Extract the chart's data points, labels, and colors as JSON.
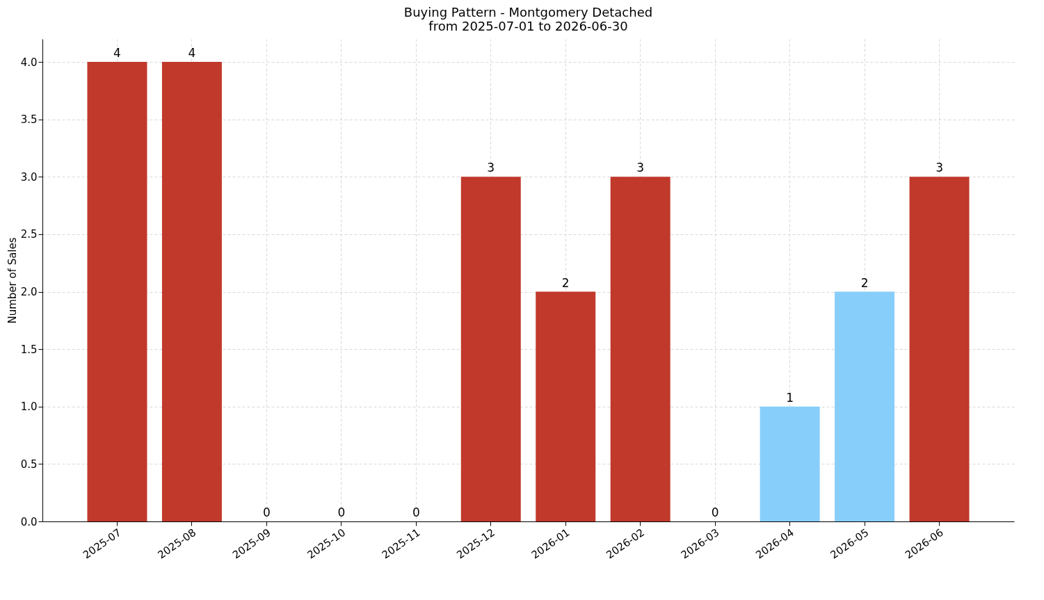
{
  "chart_data": {
    "type": "bar",
    "title": "Buying Pattern - Montgomery Detached\nfrom 2025-07-01 to 2026-06-30",
    "ylabel": "Number of Sales",
    "categories": [
      "2025-07",
      "2025-08",
      "2025-09",
      "2025-10",
      "2025-11",
      "2025-12",
      "2026-01",
      "2026-02",
      "2026-03",
      "2026-04",
      "2026-05",
      "2026-06"
    ],
    "values": [
      4,
      4,
      0,
      0,
      0,
      3,
      2,
      3,
      0,
      1,
      2,
      3
    ],
    "colors": [
      "#c0392b",
      "#c0392b",
      "#c0392b",
      "#c0392b",
      "#c0392b",
      "#c0392b",
      "#c0392b",
      "#c0392b",
      "#c0392b",
      "#87cefa",
      "#87cefa",
      "#c0392b"
    ],
    "ylim": [
      0,
      4.2
    ],
    "yticks": [
      {
        "value": 0,
        "label": "0.0"
      },
      0.5,
      {
        "value": 1,
        "label": "1.0"
      },
      1.5,
      {
        "value": 2,
        "label": "2.0"
      },
      2.5,
      {
        "value": 3,
        "label": "3.0"
      },
      3.5,
      {
        "value": 4,
        "label": "4.0"
      }
    ],
    "grid": true,
    "data_labels": true
  }
}
